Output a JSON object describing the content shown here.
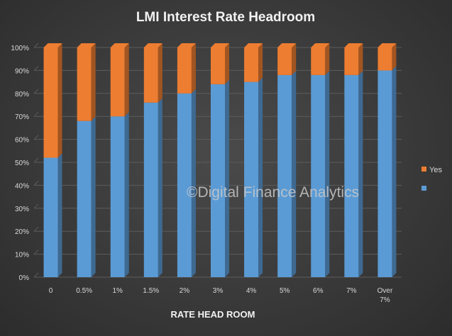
{
  "chart_data": {
    "type": "bar",
    "stacked": true,
    "title": "LMI Interest Rate Headroom",
    "xlabel": "RATE HEAD ROOM",
    "ylabel": "",
    "ylim": [
      0,
      100
    ],
    "y_ticks": [
      "0%",
      "10%",
      "20%",
      "30%",
      "40%",
      "50%",
      "60%",
      "70%",
      "80%",
      "90%",
      "100%"
    ],
    "categories": [
      "0",
      "0.5%",
      "1%",
      "1.5%",
      "2%",
      "3%",
      "4%",
      "5%",
      "6%",
      "7%",
      "Over 7%"
    ],
    "series": [
      {
        "name": "",
        "color": "#5b9bd5",
        "values": [
          52,
          68,
          70,
          76,
          80,
          84,
          85,
          88,
          88,
          88,
          90
        ]
      },
      {
        "name": "Yes",
        "color": "#ed7d31",
        "values": [
          48,
          32,
          30,
          24,
          20,
          16,
          15,
          12,
          12,
          12,
          10
        ]
      }
    ],
    "grid": true,
    "legend_position": "right",
    "annotation": "©Digital Finance Analytics"
  }
}
